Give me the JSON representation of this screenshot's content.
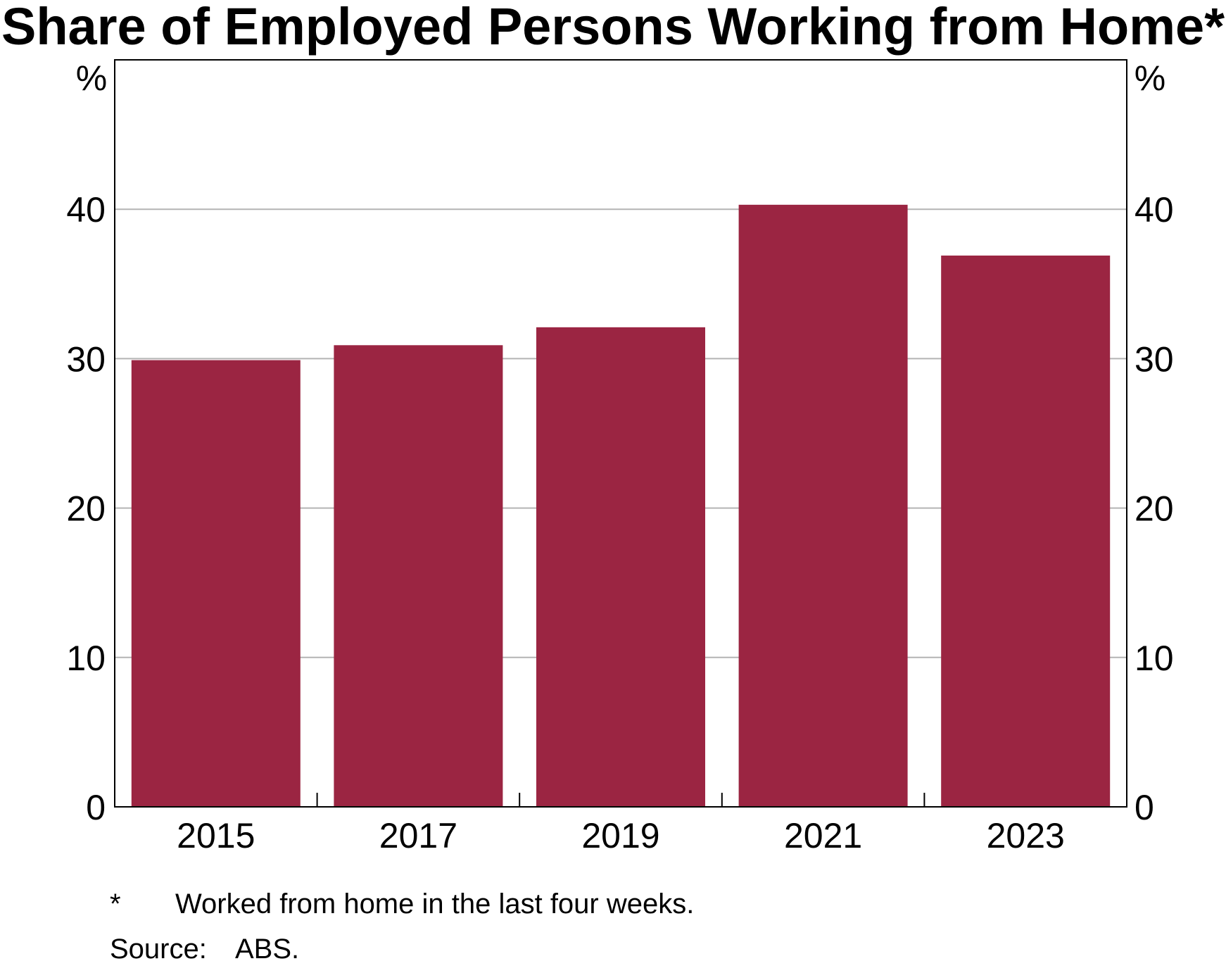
{
  "chart_data": {
    "type": "bar",
    "title": "Share of Employed Persons Working from Home*",
    "categories": [
      "2015",
      "2017",
      "2019",
      "2021",
      "2023"
    ],
    "values": [
      29.9,
      30.9,
      32.1,
      40.3,
      36.9
    ],
    "ylabel_left": "%",
    "ylabel_right": "%",
    "ylim": [
      0,
      50
    ],
    "yticks": [
      "0",
      "10",
      "20",
      "30",
      "40"
    ],
    "grid": true,
    "bar_color": "#9b2542",
    "grid_color": "#b4b4b4"
  },
  "notes": {
    "footnote_marker": "*",
    "footnote_text": "Worked from home in the last four weeks.",
    "source_label": "Source:",
    "source_text": "ABS."
  }
}
